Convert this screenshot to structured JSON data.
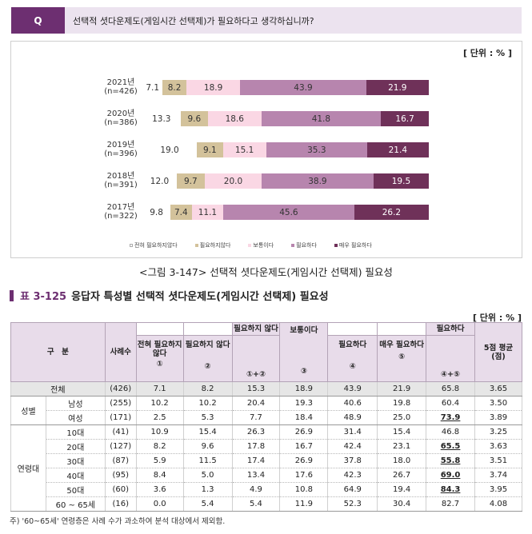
{
  "question": {
    "badge": "Q",
    "text": "선택적 셧다운제도(게임시간 선택제)가 필요하다고 생각하십니까?"
  },
  "chart_data": {
    "type": "bar",
    "orientation": "horizontal-stacked-100",
    "unit": "[ 단위 : % ]",
    "title": "<그림 3-147> 선택적 셧다운제도(게임시간 선택제) 필요성",
    "categories": [
      {
        "year": "2021년",
        "n": "(n=426)"
      },
      {
        "year": "2020년",
        "n": "(n=386)"
      },
      {
        "year": "2019년",
        "n": "(n=396)"
      },
      {
        "year": "2018년",
        "n": "(n=391)"
      },
      {
        "year": "2017년",
        "n": "(n=322)"
      }
    ],
    "series": [
      {
        "name": "전혀 필요하지않다",
        "color": "#ffffff",
        "values": [
          7.1,
          13.3,
          19.0,
          12.0,
          9.8
        ]
      },
      {
        "name": "필요하지않다",
        "color": "#d3c29b",
        "values": [
          8.2,
          9.6,
          9.1,
          9.7,
          7.4
        ]
      },
      {
        "name": "보통이다",
        "color": "#fad7e4",
        "values": [
          18.9,
          18.6,
          15.1,
          20.0,
          11.1
        ]
      },
      {
        "name": "필요하다",
        "color": "#b785ae",
        "values": [
          43.9,
          41.8,
          35.3,
          38.9,
          45.6
        ]
      },
      {
        "name": "매우 필요하다",
        "color": "#6f3159",
        "values": [
          21.9,
          16.7,
          21.4,
          19.5,
          26.2
        ]
      }
    ],
    "labels": [
      [
        "7.1",
        "8.2",
        "18.9",
        "43.9",
        "21.9"
      ],
      [
        "13.3",
        "9.6",
        "18.6",
        "41.8",
        "16.7"
      ],
      [
        "19.0",
        "9.1",
        "15.1",
        "35.3",
        "21.4"
      ],
      [
        "12.0",
        "9.7",
        "20.0",
        "38.9",
        "19.5"
      ],
      [
        "9.8",
        "7.4",
        "11.1",
        "45.6",
        "26.2"
      ]
    ],
    "xlim": [
      0,
      100
    ]
  },
  "legend_labels": [
    "전혀 필요하지않다",
    "필요하지않다",
    "보통이다",
    "필요하다",
    "매우 필요하다"
  ],
  "legend_colors": [
    "#ffffff",
    "#d3c29b",
    "#fad7e4",
    "#b785ae",
    "#6f3159"
  ],
  "table": {
    "title_num": "표 3-125",
    "title_text": "응답자 특성별 선택적 셧다운제도(게임시간 선택제) 필요성",
    "unit": "[ 단위 : % ]",
    "headers": {
      "group": "구　분",
      "count": "사례수",
      "not_needed_sum": "필요하지 않다",
      "not_at_all": "전혀 필요하지 않다",
      "not_at_all_no": "①",
      "not": "필요하지 않다",
      "not_no": "②",
      "sum12": "①+②",
      "neutral": "보통이다",
      "neutral_no": "③",
      "needed": "필요하다",
      "needed_no": "④",
      "very_needed": "매우 필요하다",
      "very_needed_no": "⑤",
      "needed_sum": "필요하다",
      "sum45": "④+⑤",
      "avg": "5점 평균 (점)"
    },
    "total": {
      "label": "전체",
      "n": "(426)",
      "c1": "7.1",
      "c2": "8.2",
      "c12": "15.3",
      "c3": "18.9",
      "c4": "43.9",
      "c5": "21.9",
      "c45": "65.8",
      "avg": "3.65"
    },
    "gender_label": "성별",
    "gender": [
      {
        "label": "남성",
        "n": "(255)",
        "c1": "10.2",
        "c2": "10.2",
        "c12": "20.4",
        "c3": "19.3",
        "c4": "40.6",
        "c5": "19.8",
        "c45": "60.4",
        "avg": "3.50"
      },
      {
        "label": "여성",
        "n": "(171)",
        "c1": "2.5",
        "c2": "5.3",
        "c12": "7.7",
        "c3": "18.4",
        "c4": "48.9",
        "c5": "25.0",
        "c45": "73.9",
        "avg": "3.89"
      }
    ],
    "age_label": "연령대",
    "age": [
      {
        "label": "10대",
        "n": "(41)",
        "c1": "10.9",
        "c2": "15.4",
        "c12": "26.3",
        "c3": "26.9",
        "c4": "31.4",
        "c5": "15.4",
        "c45": "46.8",
        "avg": "3.25"
      },
      {
        "label": "20대",
        "n": "(127)",
        "c1": "8.2",
        "c2": "9.6",
        "c12": "17.8",
        "c3": "16.7",
        "c4": "42.4",
        "c5": "23.1",
        "c45": "65.5",
        "avg": "3.63"
      },
      {
        "label": "30대",
        "n": "(87)",
        "c1": "5.9",
        "c2": "11.5",
        "c12": "17.4",
        "c3": "26.9",
        "c4": "37.8",
        "c5": "18.0",
        "c45": "55.8",
        "avg": "3.51"
      },
      {
        "label": "40대",
        "n": "(95)",
        "c1": "8.4",
        "c2": "5.0",
        "c12": "13.4",
        "c3": "17.6",
        "c4": "42.3",
        "c5": "26.7",
        "c45": "69.0",
        "avg": "3.74"
      },
      {
        "label": "50대",
        "n": "(60)",
        "c1": "3.6",
        "c2": "1.3",
        "c12": "4.9",
        "c3": "10.8",
        "c4": "64.9",
        "c5": "19.4",
        "c45": "84.3",
        "avg": "3.95"
      },
      {
        "label": "60 ~ 65세",
        "n": "(16)",
        "c1": "0.0",
        "c2": "5.4",
        "c12": "5.4",
        "c3": "11.9",
        "c4": "52.3",
        "c5": "30.4",
        "c45": "82.7",
        "avg": "4.08"
      }
    ]
  },
  "footnote": "주) '60~65세' 연령층은 사례 수가 과소하여 분석 대상에서 제외함."
}
